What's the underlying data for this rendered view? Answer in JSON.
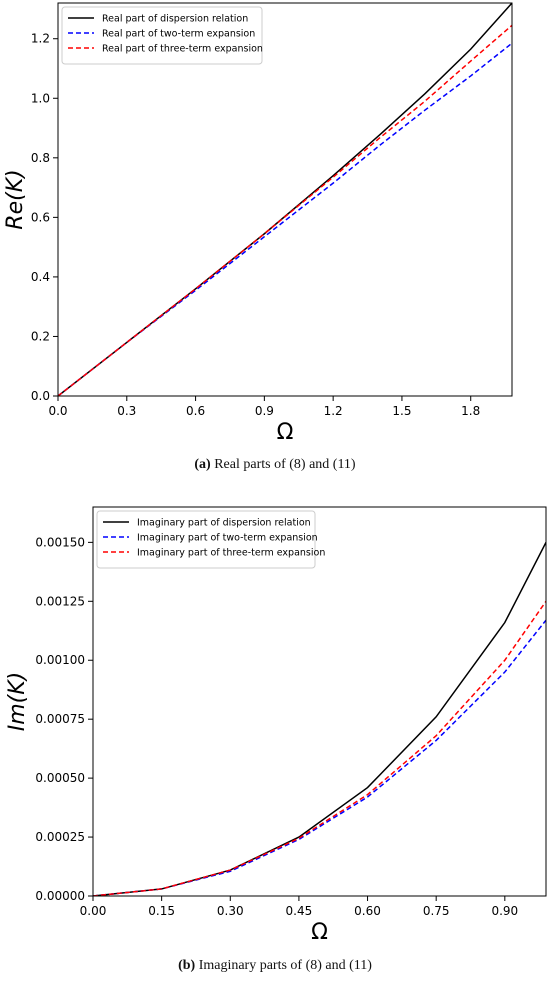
{
  "chart_data": [
    {
      "type": "line",
      "xlabel": "Ω",
      "ylabel": "Re(K)",
      "xlim": [
        0,
        1.98
      ],
      "ylim": [
        0,
        1.32
      ],
      "xticks": [
        0.0,
        0.3,
        0.6,
        0.9,
        1.2,
        1.5,
        1.8
      ],
      "xtick_labels": [
        "0.0",
        "0.3",
        "0.6",
        "0.9",
        "1.2",
        "1.5",
        "1.8"
      ],
      "yticks": [
        0.0,
        0.2,
        0.4,
        0.6,
        0.8,
        1.0,
        1.2
      ],
      "ytick_labels": [
        "0.0",
        "0.2",
        "0.4",
        "0.6",
        "0.8",
        "1.0",
        "1.2"
      ],
      "legend_position": "top-left",
      "series": [
        {
          "name": "Real part of dispersion relation",
          "color": "#000000",
          "style": "solid",
          "x": [
            0,
            0.3,
            0.6,
            0.9,
            1.2,
            1.4,
            1.6,
            1.8,
            1.98
          ],
          "y": [
            0,
            0.18,
            0.36,
            0.545,
            0.74,
            0.875,
            1.015,
            1.165,
            1.32
          ]
        },
        {
          "name": "Real part of two-term expansion",
          "color": "#0000ff",
          "style": "dashed",
          "x": [
            0,
            0.3,
            0.6,
            0.9,
            1.2,
            1.4,
            1.6,
            1.8,
            1.98
          ],
          "y": [
            0,
            0.18,
            0.355,
            0.535,
            0.715,
            0.84,
            0.96,
            1.075,
            1.185
          ]
        },
        {
          "name": "Real part of three-term expansion",
          "color": "#ff0000",
          "style": "dashed",
          "x": [
            0,
            0.3,
            0.6,
            0.9,
            1.2,
            1.4,
            1.6,
            1.8,
            1.98
          ],
          "y": [
            0,
            0.18,
            0.36,
            0.545,
            0.735,
            0.865,
            0.99,
            1.125,
            1.245
          ]
        }
      ]
    },
    {
      "type": "line",
      "xlabel": "Ω",
      "ylabel": "Im(K)",
      "xlim": [
        0,
        0.99
      ],
      "ylim": [
        0,
        0.00165
      ],
      "xticks": [
        0.0,
        0.15,
        0.3,
        0.45,
        0.6,
        0.75,
        0.9
      ],
      "xtick_labels": [
        "0.00",
        "0.15",
        "0.30",
        "0.45",
        "0.60",
        "0.75",
        "0.90"
      ],
      "yticks": [
        0,
        0.00025,
        0.0005,
        0.00075,
        0.001,
        0.00125,
        0.0015
      ],
      "ytick_labels": [
        "0.00000",
        "0.00025",
        "0.00050",
        "0.00075",
        "0.00100",
        "0.00125",
        "0.00150"
      ],
      "legend_position": "top-left",
      "series": [
        {
          "name": "Imaginary part of dispersion relation",
          "color": "#000000",
          "style": "solid",
          "x": [
            0,
            0.15,
            0.3,
            0.45,
            0.6,
            0.75,
            0.9,
            0.99
          ],
          "y": [
            0,
            3e-05,
            0.00011,
            0.00025,
            0.00046,
            0.00076,
            0.00116,
            0.0015
          ]
        },
        {
          "name": "Imaginary part of two-term expansion",
          "color": "#0000ff",
          "style": "dashed",
          "x": [
            0,
            0.15,
            0.3,
            0.45,
            0.6,
            0.75,
            0.9,
            0.99
          ],
          "y": [
            0,
            3e-05,
            0.000105,
            0.00024,
            0.00042,
            0.00066,
            0.00095,
            0.00117
          ]
        },
        {
          "name": "Imaginary part of three-term expansion",
          "color": "#ff0000",
          "style": "dashed",
          "x": [
            0,
            0.15,
            0.3,
            0.45,
            0.6,
            0.75,
            0.9,
            0.99
          ],
          "y": [
            0,
            3e-05,
            0.00011,
            0.000245,
            0.00043,
            0.00068,
            0.001,
            0.00125
          ]
        }
      ]
    }
  ],
  "captions": {
    "a": {
      "label": "(a)",
      "text": " Real parts of (8) and (11)"
    },
    "b": {
      "label": "(b)",
      "text": " Imaginary parts of (8) and (11)"
    }
  }
}
